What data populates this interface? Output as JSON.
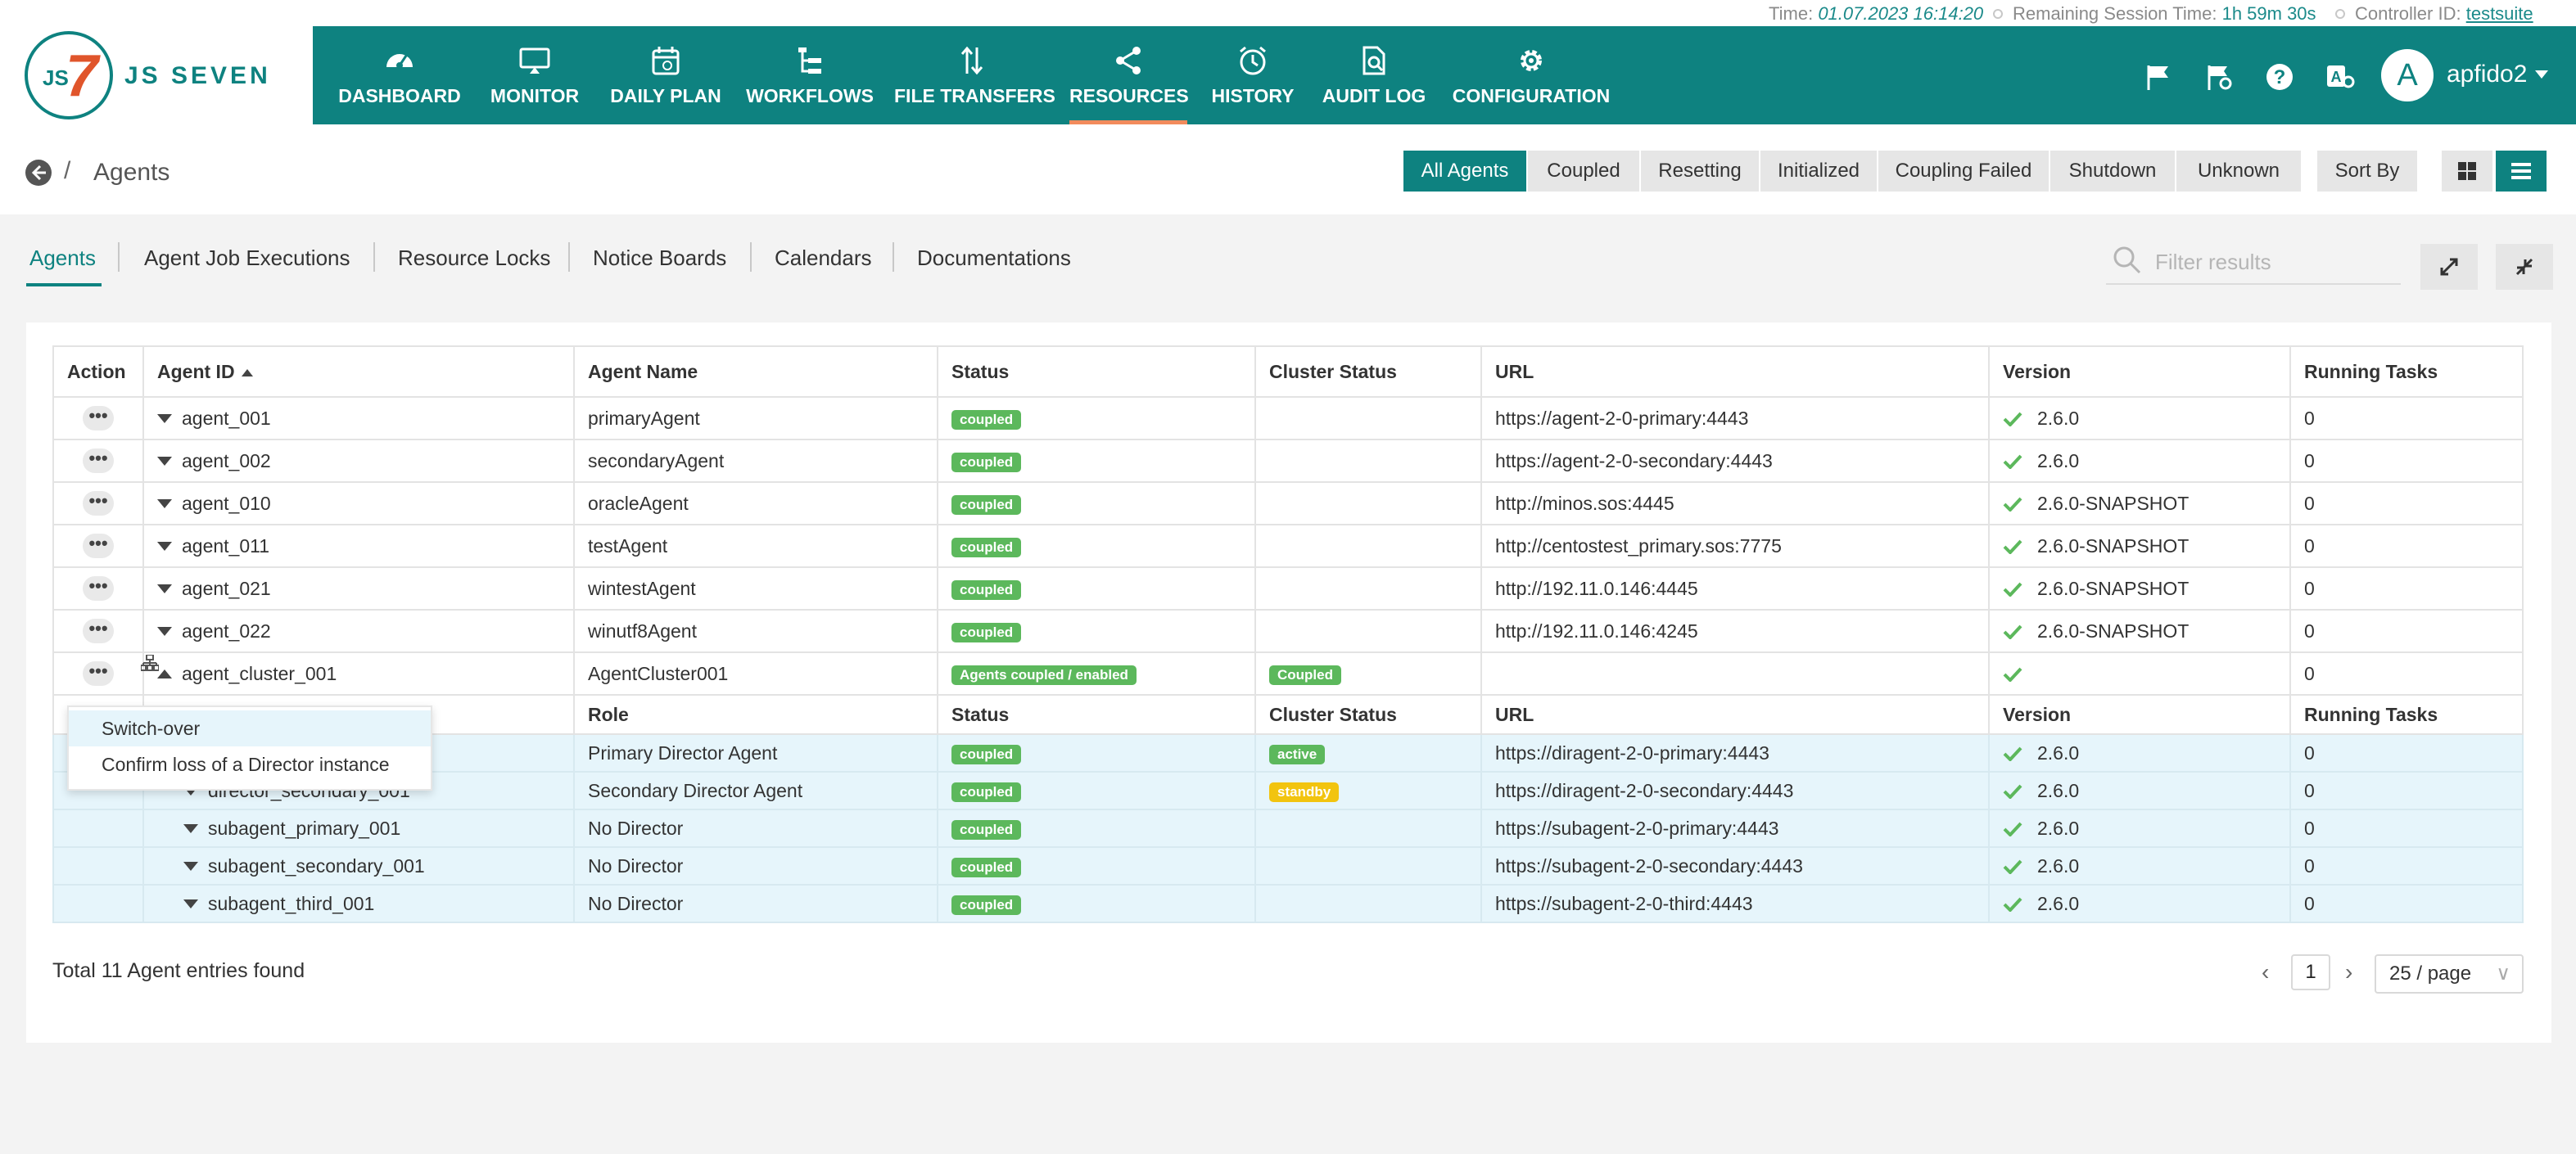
{
  "topline": {
    "time_label": "Time:",
    "time_value": "01.07.2023 16:14:20",
    "session_label": "Remaining Session Time:",
    "session_value": "1h 59m 30s",
    "controller_label": "Controller ID:",
    "controller_value": "testsuite"
  },
  "logo": {
    "mark_js": "JS",
    "mark_seven": "7",
    "text": "JS SEVEN"
  },
  "nav": [
    {
      "label": "DASHBOARD",
      "icon": "dashboard-icon"
    },
    {
      "label": "MONITOR",
      "icon": "monitor-icon"
    },
    {
      "label": "DAILY PLAN",
      "icon": "calendar-icon"
    },
    {
      "label": "WORKFLOWS",
      "icon": "workflow-icon"
    },
    {
      "label": "FILE TRANSFERS",
      "icon": "transfer-icon"
    },
    {
      "label": "RESOURCES",
      "icon": "share-icon",
      "active": true
    },
    {
      "label": "HISTORY",
      "icon": "alarm-clock-icon"
    },
    {
      "label": "AUDIT LOG",
      "icon": "audit-doc-icon"
    },
    {
      "label": "CONFIGURATION",
      "icon": "gear-icon"
    }
  ],
  "user": {
    "avatar_letter": "A",
    "name": "apfido2"
  },
  "breadcrumb": {
    "separator": "/",
    "title": "Agents"
  },
  "filters": [
    "All Agents",
    "Coupled",
    "Resetting",
    "Initialized",
    "Coupling Failed",
    "Shutdown",
    "Unknown"
  ],
  "sort_label": "Sort By",
  "tabs": [
    "Agents",
    "Agent Job Executions",
    "Resource Locks",
    "Notice Boards",
    "Calendars",
    "Documentations"
  ],
  "search": {
    "placeholder": "Filter results"
  },
  "table": {
    "headers": [
      "Action",
      "Agent ID",
      "Agent Name",
      "Status",
      "Cluster Status",
      "URL",
      "Version",
      "Running Tasks"
    ],
    "rows": [
      {
        "id": "agent_001",
        "name": "primaryAgent",
        "status": "coupled",
        "url": "https://agent-2-0-primary:4443",
        "version": "2.6.0",
        "tasks": "0"
      },
      {
        "id": "agent_002",
        "name": "secondaryAgent",
        "status": "coupled",
        "url": "https://agent-2-0-secondary:4443",
        "version": "2.6.0",
        "tasks": "0"
      },
      {
        "id": "agent_010",
        "name": "oracleAgent",
        "status": "coupled",
        "url": "http://minos.sos:4445",
        "version": "2.6.0-SNAPSHOT",
        "tasks": "0"
      },
      {
        "id": "agent_011",
        "name": "testAgent",
        "status": "coupled",
        "url": "http://centostest_primary.sos:7775",
        "version": "2.6.0-SNAPSHOT",
        "tasks": "0"
      },
      {
        "id": "agent_021",
        "name": "wintestAgent",
        "status": "coupled",
        "url": "http://192.11.0.146:4445",
        "version": "2.6.0-SNAPSHOT",
        "tasks": "0"
      },
      {
        "id": "agent_022",
        "name": "winutf8Agent",
        "status": "coupled",
        "url": "http://192.11.0.146:4245",
        "version": "2.6.0-SNAPSHOT",
        "tasks": "0"
      }
    ],
    "cluster": {
      "id": "agent_cluster_001",
      "name": "AgentCluster001",
      "status": "Agents coupled / enabled",
      "cluster_status": "Coupled",
      "tasks": "0"
    },
    "sub_headers": [
      "Role",
      "Status",
      "Cluster Status",
      "URL",
      "Version",
      "Running Tasks"
    ],
    "sub_rows": [
      {
        "id": "",
        "role": "Primary Director Agent",
        "status": "coupled",
        "cluster_status": "active",
        "url": "https://diragent-2-0-primary:4443",
        "version": "2.6.0",
        "tasks": "0"
      },
      {
        "id": "director_secondary_001",
        "role": "Secondary Director Agent",
        "status": "coupled",
        "cluster_status": "standby",
        "url": "https://diragent-2-0-secondary:4443",
        "version": "2.6.0",
        "tasks": "0"
      },
      {
        "id": "subagent_primary_001",
        "role": "No Director",
        "status": "coupled",
        "cluster_status": "",
        "url": "https://subagent-2-0-primary:4443",
        "version": "2.6.0",
        "tasks": "0"
      },
      {
        "id": "subagent_secondary_001",
        "role": "No Director",
        "status": "coupled",
        "cluster_status": "",
        "url": "https://subagent-2-0-secondary:4443",
        "version": "2.6.0",
        "tasks": "0"
      },
      {
        "id": "subagent_third_001",
        "role": "No Director",
        "status": "coupled",
        "cluster_status": "",
        "url": "https://subagent-2-0-third:4443",
        "version": "2.6.0",
        "tasks": "0"
      }
    ]
  },
  "context_menu": [
    "Switch-over",
    "Confirm loss of a Director instance"
  ],
  "footer": {
    "total": "Total 11 Agent entries found",
    "page": "1",
    "page_size": "25 / page"
  },
  "colors": {
    "brand": "#0e8280",
    "accent": "#f28b5c",
    "coupled": "#5cb85c",
    "standby": "#f2c40f"
  }
}
